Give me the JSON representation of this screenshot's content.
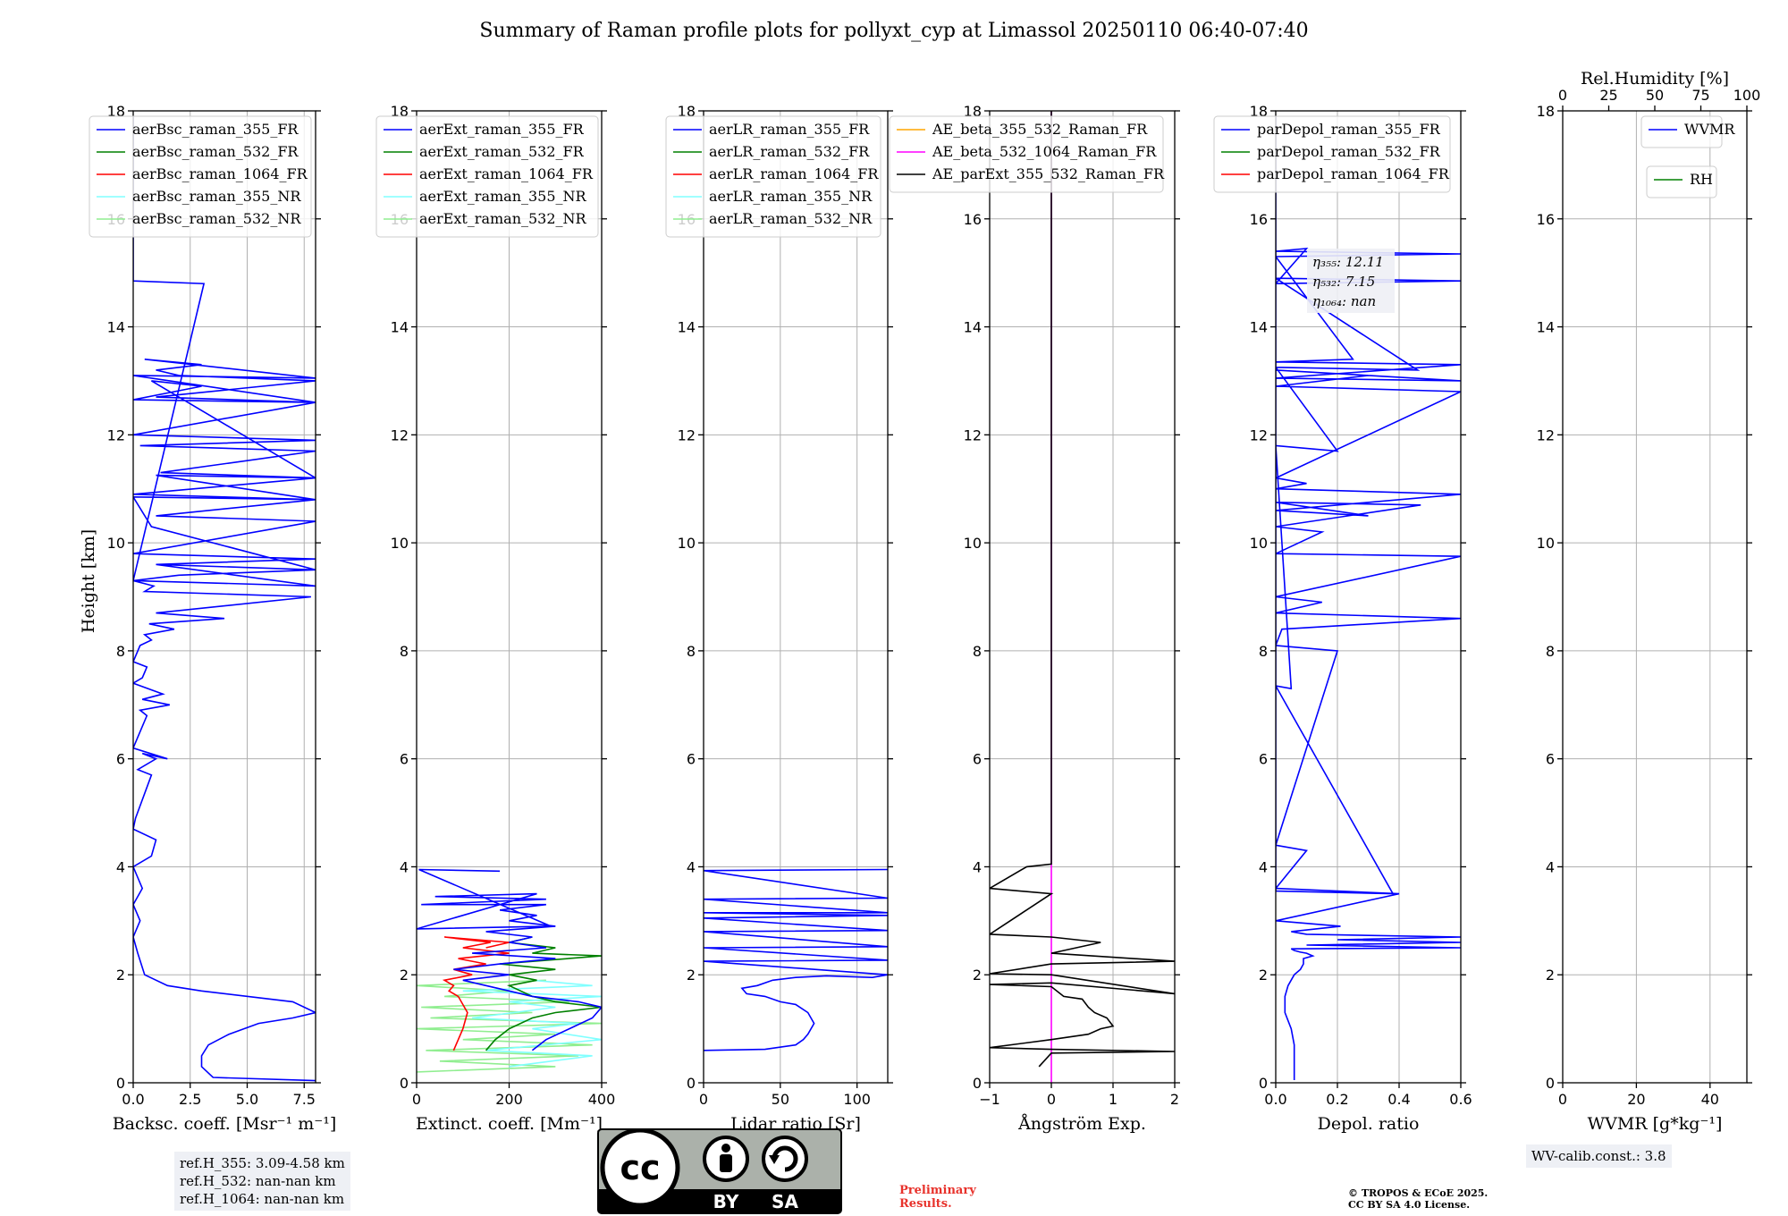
{
  "figure": {
    "title": "Summary of Raman profile plots for pollyxt_cyp at Limassol 20250110 06:40-07:40",
    "ylabel": "Height [km]",
    "ref_heights": [
      "ref.H_355: 3.09-4.58 km",
      "ref.H_532: nan-nan km",
      "ref.H_1064: nan-nan km"
    ],
    "wv_calib": "WV-calib.const.: 3.8",
    "license_badge": {
      "cc": "cc",
      "by": "BY",
      "sa": "SA"
    },
    "preliminary": [
      "Preliminary",
      "Results."
    ],
    "copyright": [
      "© TROPOS & ECoE 2025.",
      "CC BY SA 4.0 License."
    ],
    "colors": {
      "c355": "#0000ff",
      "c532": "#008000",
      "c1064": "#ff0000",
      "c355nr": "#80ffff",
      "c532nr": "#90ee90",
      "ae1": "#ffa500",
      "ae2": "#ff00ff",
      "ae3": "#000000"
    }
  },
  "chart_data": [
    {
      "id": "bsc",
      "type": "line",
      "xlabel": "Backsc. coeff. [Msr⁻¹ m⁻¹]",
      "xlim": [
        0,
        8
      ],
      "ylim": [
        0,
        18
      ],
      "xticks": [
        "0.0",
        "2.5",
        "5.0",
        "7.5"
      ],
      "xtick_values": [
        0,
        2.5,
        5,
        7.5
      ],
      "yticks": [
        "0",
        "2",
        "4",
        "6",
        "8",
        "10",
        "12",
        "14",
        "16",
        "18"
      ],
      "legend": [
        "aerBsc_raman_355_FR",
        "aerBsc_raman_532_FR",
        "aerBsc_raman_1064_FR",
        "aerBsc_raman_355_NR",
        "aerBsc_raman_532_NR"
      ],
      "legend_colors": [
        "#0000ff",
        "#008000",
        "#ff0000",
        "#80ffff",
        "#90ee90"
      ],
      "series": [
        {
          "name": "aerBsc_raman_355_FR",
          "color": "#0000ff",
          "x": [
            8,
            3.5,
            3.0,
            3.0,
            3.3,
            4.2,
            5.5,
            7.0,
            8.0,
            7.0,
            3.0,
            1.5,
            0.5,
            0.2,
            0.0,
            0.2,
            0.3,
            0.0,
            0.4,
            0.2,
            0.0,
            0.8,
            1.0,
            0.0,
            0.1,
            0.8,
            0.2,
            1.0,
            0.4,
            1.5,
            0.0,
            0.6,
            0.3,
            1.6,
            0.4,
            1.3,
            0.0,
            0.4,
            0.5,
            0.6,
            0.0,
            0.3,
            0.8,
            0.5,
            1.8,
            0.7,
            4.0,
            1.0,
            7.8,
            0.5,
            0.9,
            0.0,
            2.0,
            8.0,
            1.0,
            8.0,
            0.0,
            8.0,
            1.0,
            8.0,
            0.0,
            8.0,
            1.2,
            8.0,
            0.3,
            8.0,
            0.0,
            8.0,
            1.0,
            8.0,
            2.0,
            1.0,
            3.0,
            0.5,
            8.0,
            0.0,
            8.0,
            0.0,
            3.0,
            0.8,
            8.0,
            1.0,
            8.0,
            0.0,
            0.8,
            8.0,
            1.0,
            8.0,
            0.0,
            3.1,
            0.0,
            0.0
          ],
          "y": [
            0.04,
            0.1,
            0.3,
            0.5,
            0.7,
            0.9,
            1.1,
            1.2,
            1.3,
            1.5,
            1.7,
            1.8,
            2.0,
            2.4,
            2.7,
            2.9,
            3.0,
            3.3,
            3.6,
            3.8,
            4.0,
            4.2,
            4.5,
            4.7,
            4.9,
            5.7,
            5.8,
            6.0,
            6.1,
            6.0,
            6.2,
            6.8,
            6.9,
            7.0,
            7.1,
            7.2,
            7.4,
            7.5,
            7.6,
            7.7,
            7.8,
            8.1,
            8.2,
            8.3,
            8.4,
            8.5,
            8.6,
            8.7,
            9.0,
            9.1,
            9.2,
            9.3,
            9.4,
            9.5,
            9.6,
            9.7,
            9.8,
            10.4,
            10.5,
            10.8,
            10.9,
            11.2,
            11.3,
            11.7,
            11.8,
            11.9,
            12.0,
            12.6,
            12.7,
            13.0,
            13.1,
            13.2,
            13.3,
            13.4,
            13.05,
            13.1,
            12.6,
            12.65,
            12.9,
            13.0,
            11.2,
            11.25,
            10.8,
            10.85,
            10.3,
            9.5,
            9.6,
            9.2,
            9.3,
            14.8,
            14.85,
            17.9
          ]
        }
      ]
    },
    {
      "id": "ext",
      "type": "line",
      "xlabel": "Extinct. coeff. [Mm⁻¹]",
      "xlim": [
        0,
        400
      ],
      "ylim": [
        0,
        18
      ],
      "xticks": [
        "0",
        "200",
        "400"
      ],
      "xtick_values": [
        0,
        200,
        400
      ],
      "yticks": [
        "0",
        "2",
        "4",
        "6",
        "8",
        "10",
        "12",
        "14",
        "16",
        "18"
      ],
      "legend": [
        "aerExt_raman_355_FR",
        "aerExt_raman_532_FR",
        "aerExt_raman_1064_FR",
        "aerExt_raman_355_NR",
        "aerExt_raman_532_NR"
      ],
      "legend_colors": [
        "#0000ff",
        "#008000",
        "#ff0000",
        "#80ffff",
        "#90ee90"
      ],
      "series": [
        {
          "name": "aerExt_raman_532_NR",
          "color": "#90ee90",
          "x": [
            0,
            300,
            50,
            350,
            20,
            380,
            100,
            300,
            0,
            400,
            30,
            250,
            10,
            330,
            60,
            200,
            0,
            280
          ],
          "y": [
            0.2,
            0.3,
            0.4,
            0.5,
            0.6,
            0.7,
            0.8,
            0.9,
            1.0,
            1.1,
            1.2,
            1.3,
            1.4,
            1.5,
            1.6,
            1.7,
            1.8,
            1.9
          ]
        },
        {
          "name": "aerExt_raman_355_NR",
          "color": "#80ffff",
          "x": [
            200,
            380,
            150,
            400,
            250,
            350,
            120,
            300,
            200,
            400,
            100,
            380,
            250
          ],
          "y": [
            0.3,
            0.5,
            0.6,
            0.8,
            1.0,
            1.1,
            1.2,
            1.4,
            1.5,
            1.6,
            1.7,
            1.8,
            1.9
          ]
        },
        {
          "name": "aerExt_raman_1064_FR",
          "color": "#ff0000",
          "x": [
            80,
            90,
            100,
            110,
            90,
            70,
            80,
            60,
            120,
            80,
            150,
            90,
            200,
            100,
            160,
            60,
            200,
            150
          ],
          "y": [
            0.6,
            0.8,
            1.0,
            1.3,
            1.6,
            1.7,
            1.8,
            1.9,
            2.0,
            2.1,
            2.2,
            2.3,
            2.4,
            2.5,
            2.6,
            2.7,
            2.6,
            2.5
          ]
        },
        {
          "name": "aerExt_raman_532_FR",
          "color": "#008000",
          "x": [
            150,
            170,
            200,
            250,
            300,
            400,
            300,
            250,
            200,
            260,
            200,
            300,
            180,
            400,
            250,
            300,
            200,
            250
          ],
          "y": [
            0.6,
            0.8,
            1.0,
            1.2,
            1.3,
            1.4,
            1.5,
            1.6,
            1.8,
            1.9,
            2.0,
            2.1,
            2.2,
            2.35,
            2.4,
            2.5,
            2.6,
            2.7
          ]
        },
        {
          "name": "aerExt_raman_355_FR",
          "color": "#0000ff",
          "x": [
            250,
            280,
            330,
            380,
            400,
            350,
            250,
            200,
            150,
            100,
            200,
            80,
            180,
            300,
            120,
            280,
            200,
            250,
            150,
            300,
            200,
            260,
            180,
            280,
            10,
            280,
            40,
            260,
            0,
            290,
            5,
            180
          ],
          "y": [
            0.6,
            0.8,
            1.0,
            1.2,
            1.4,
            1.5,
            1.6,
            1.7,
            1.8,
            1.9,
            2.0,
            2.1,
            2.2,
            2.3,
            2.4,
            2.5,
            2.6,
            2.7,
            2.8,
            2.9,
            3.0,
            3.1,
            3.2,
            3.3,
            3.3,
            3.4,
            3.45,
            3.5,
            2.85,
            2.9,
            3.95,
            3.92
          ]
        }
      ]
    },
    {
      "id": "lr",
      "type": "line",
      "xlabel": "Lidar ratio [Sr]",
      "xlim": [
        0,
        120
      ],
      "ylim": [
        0,
        18
      ],
      "xticks": [
        "0",
        "50",
        "100"
      ],
      "xtick_values": [
        0,
        50,
        100
      ],
      "yticks": [
        "0",
        "2",
        "4",
        "6",
        "8",
        "10",
        "12",
        "14",
        "16",
        "18"
      ],
      "legend": [
        "aerLR_raman_355_FR",
        "aerLR_raman_532_FR",
        "aerLR_raman_1064_FR",
        "aerLR_raman_355_NR",
        "aerLR_raman_532_NR"
      ],
      "legend_colors": [
        "#0000ff",
        "#008000",
        "#ff0000",
        "#80ffff",
        "#90ee90"
      ],
      "series": [
        {
          "name": "aerLR_raman_355_FR",
          "color": "#0000ff",
          "x": [
            0,
            40,
            60,
            65,
            68,
            72,
            68,
            60,
            50,
            40,
            28,
            25,
            35,
            45,
            60,
            80,
            110,
            120,
            0,
            120,
            0,
            120,
            0,
            120,
            0,
            120,
            0,
            120,
            0,
            120,
            0,
            120
          ],
          "y": [
            0.6,
            0.62,
            0.7,
            0.8,
            0.9,
            1.1,
            1.3,
            1.45,
            1.5,
            1.6,
            1.65,
            1.75,
            1.8,
            1.9,
            1.95,
            1.98,
            1.95,
            2.0,
            2.25,
            2.27,
            2.5,
            2.52,
            2.8,
            2.82,
            3.05,
            3.1,
            3.15,
            3.15,
            3.4,
            3.42,
            3.93,
            3.95
          ]
        }
      ]
    },
    {
      "id": "ae",
      "type": "line",
      "xlabel": "Ångström Exp.",
      "xlim": [
        -1,
        2
      ],
      "ylim": [
        0,
        18
      ],
      "xticks": [
        "−1",
        "0",
        "1",
        "2"
      ],
      "xtick_values": [
        -1,
        0,
        1,
        2
      ],
      "yticks": [
        "0",
        "2",
        "4",
        "6",
        "8",
        "10",
        "12",
        "14",
        "16",
        "18"
      ],
      "legend": [
        "AE_beta_355_532_Raman_FR",
        "AE_beta_532_1064_Raman_FR",
        "AE_parExt_355_532_Raman_FR"
      ],
      "legend_colors": [
        "#ffa500",
        "#ff00ff",
        "#000000"
      ],
      "series": [
        {
          "name": "AE_beta_532_1064_Raman_FR",
          "color": "#ff00ff",
          "x": [
            0,
            0
          ],
          "y": [
            0,
            18
          ]
        },
        {
          "name": "AE_parExt_355_532_Raman_FR",
          "color": "#000000",
          "x": [
            -0.2,
            0.0,
            2.0,
            0.0,
            -1.0,
            0.0,
            0.6,
            0.8,
            1.0,
            0.9,
            0.7,
            0.6,
            0.5,
            0.2,
            0.0,
            -1.0,
            0.0,
            2.0,
            0.0,
            -1.0,
            0.0,
            2.0,
            0.0,
            0.8,
            0.0,
            -1.0,
            0.0,
            -1.0,
            -0.4,
            0.0,
            0.0
          ],
          "y": [
            0.3,
            0.55,
            0.58,
            0.62,
            0.65,
            0.8,
            0.9,
            1.0,
            1.05,
            1.2,
            1.3,
            1.4,
            1.55,
            1.6,
            1.78,
            1.82,
            1.85,
            1.65,
            2.0,
            2.02,
            2.2,
            2.25,
            2.4,
            2.6,
            2.7,
            2.75,
            3.5,
            3.6,
            4.0,
            4.05,
            18
          ]
        }
      ]
    },
    {
      "id": "dep",
      "type": "line",
      "xlabel": "Depol. ratio",
      "xlim": [
        0,
        0.6
      ],
      "ylim": [
        0,
        18
      ],
      "xticks": [
        "0.0",
        "0.2",
        "0.4",
        "0.6"
      ],
      "xtick_values": [
        0,
        0.2,
        0.4,
        0.6
      ],
      "yticks": [
        "0",
        "2",
        "4",
        "6",
        "8",
        "10",
        "12",
        "14",
        "16",
        "18"
      ],
      "legend": [
        "parDepol_raman_355_FR",
        "parDepol_raman_532_FR",
        "parDepol_raman_1064_FR"
      ],
      "legend_colors": [
        "#0000ff",
        "#008000",
        "#ff0000"
      ],
      "annotation": {
        "l355": "η₃₅₅: 12.11",
        "l532": "η₅₃₂: 7.15",
        "l1064": "η₁₀₆₄: nan"
      },
      "series": [
        {
          "name": "parDepol_raman_355_FR",
          "color": "#0000ff",
          "x": [
            0.06,
            0.06,
            0.05,
            0.03,
            0.03,
            0.04,
            0.06,
            0.08,
            0.09,
            0.09,
            0.12,
            0.1,
            0.08,
            0.06,
            0.05,
            0.6,
            0.1,
            0.6,
            0.2,
            0.6,
            0.1,
            0.05,
            0.21,
            0.0,
            0.4,
            0.0,
            0.1,
            0.0,
            0.2,
            0.0,
            0.02,
            0.6,
            0.0,
            0.15,
            0.0,
            0.6,
            0.0,
            0.15,
            0.0,
            0.47,
            0.0,
            0.3,
            0.0,
            0.6,
            0.0,
            0.1,
            0.0,
            0.6,
            0.0,
            0.3,
            0.0,
            0.6,
            0.0,
            0.6,
            0.0,
            0.25,
            0.0,
            0.6,
            0.0,
            0.1,
            0.0,
            0.6,
            0.0,
            0.46,
            0.0,
            0.2,
            0.0,
            0.05,
            0.0,
            0.38,
            0.0,
            0.0
          ],
          "y": [
            0.05,
            0.7,
            1.0,
            1.3,
            1.6,
            1.8,
            2.0,
            2.1,
            2.2,
            2.3,
            2.35,
            2.4,
            2.42,
            2.45,
            2.48,
            2.5,
            2.55,
            2.6,
            2.65,
            2.7,
            2.75,
            2.8,
            2.9,
            3.0,
            3.5,
            3.6,
            4.3,
            4.4,
            8.0,
            8.1,
            8.4,
            8.6,
            8.7,
            8.9,
            9.0,
            9.75,
            9.8,
            10.2,
            10.3,
            10.7,
            10.75,
            10.5,
            10.6,
            10.9,
            11.0,
            11.1,
            11.2,
            12.8,
            12.9,
            13.1,
            13.2,
            13.0,
            13.05,
            13.3,
            13.35,
            13.4,
            15.3,
            15.35,
            15.4,
            15.45,
            14.8,
            14.85,
            14.9,
            13.2,
            13.25,
            11.7,
            11.8,
            7.3,
            7.35,
            3.5,
            3.55,
            17.9
          ]
        }
      ]
    },
    {
      "id": "wv",
      "type": "line",
      "xlabel": "WVMR [g*kg⁻¹]",
      "xlim": [
        0,
        50
      ],
      "ylim": [
        0,
        18
      ],
      "xticks": [
        "0",
        "20",
        "40"
      ],
      "xtick_values": [
        0,
        20,
        40
      ],
      "yticks": [
        "0",
        "2",
        "4",
        "6",
        "8",
        "10",
        "12",
        "14",
        "16",
        "18"
      ],
      "top_xlabel": "Rel.Humidity [%]",
      "top_xticks": [
        "0",
        "25",
        "50",
        "75",
        "100"
      ],
      "top_xtick_values": [
        0,
        25,
        50,
        75,
        100
      ],
      "top_xlim": [
        0,
        100
      ],
      "legend": [
        "WVMR"
      ],
      "legend_colors": [
        "#0000ff"
      ],
      "legend2": [
        "RH"
      ],
      "legend2_colors": [
        "#008000"
      ],
      "series": []
    }
  ]
}
